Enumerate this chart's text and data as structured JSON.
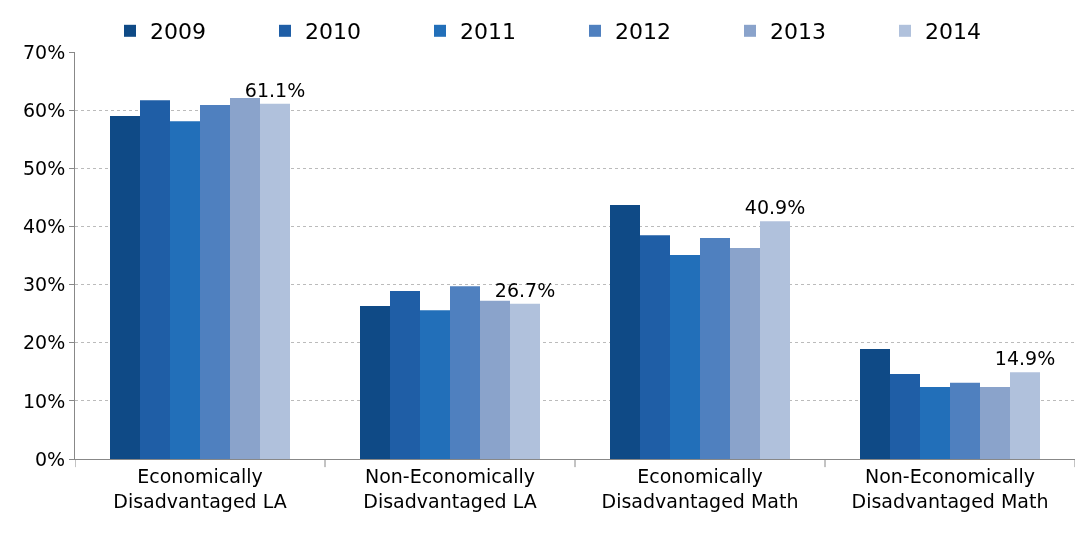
{
  "chart_data": {
    "type": "bar",
    "categories": [
      "Economically\nDisadvantaged LA",
      "Non-Economically\nDisadvantaged LA",
      "Economically\nDisadvantaged Math",
      "Non-Economically\nDisadvantaged Math"
    ],
    "series": [
      {
        "name": "2009",
        "color": "#0f4a86",
        "values": [
          59.0,
          26.3,
          43.7,
          18.9
        ]
      },
      {
        "name": "2010",
        "color": "#1f5ea6",
        "values": [
          61.7,
          28.9,
          38.5,
          14.6
        ]
      },
      {
        "name": "2011",
        "color": "#226fb9",
        "values": [
          58.1,
          25.6,
          35.1,
          12.4
        ]
      },
      {
        "name": "2012",
        "color": "#4f80bf",
        "values": [
          60.9,
          29.7,
          38.0,
          13.1
        ]
      },
      {
        "name": "2013",
        "color": "#8aa3cb",
        "values": [
          62.1,
          27.2,
          36.3,
          12.4
        ]
      },
      {
        "name": "2014",
        "color": "#b0c1dc",
        "values": [
          61.1,
          26.7,
          40.9,
          14.9
        ],
        "value_labels": [
          "61.1%",
          "26.7%",
          "40.9%",
          "14.9%"
        ]
      }
    ],
    "ylim": [
      0,
      70
    ],
    "yticks": [
      {
        "value": 0,
        "label": "0%"
      },
      {
        "value": 10,
        "label": "10%"
      },
      {
        "value": 20,
        "label": "20%"
      },
      {
        "value": 30,
        "label": "30%"
      },
      {
        "value": 40,
        "label": "40%"
      },
      {
        "value": 50,
        "label": "50%"
      },
      {
        "value": 60,
        "label": "60%"
      },
      {
        "value": 70,
        "label": "70%"
      }
    ],
    "grid": "y",
    "legend": "top"
  }
}
